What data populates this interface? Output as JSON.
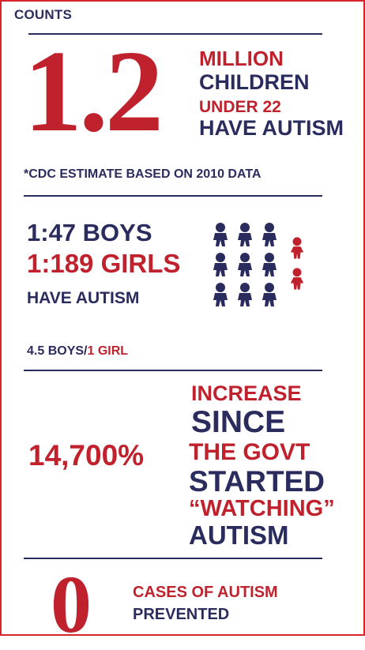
{
  "section_counts": {
    "heading": "COUNTS",
    "big_number": "1.2",
    "lines": [
      "MILLION",
      "CHILDREN",
      "UNDER 22",
      "HAVE AUTISM"
    ],
    "footnote": "*CDC ESTIMATE BASED ON 2010 DATA"
  },
  "section_ratio": {
    "boys": "1:47 BOYS",
    "girls": "1:189 GIRLS",
    "have": "HAVE AUTISM",
    "ratio_boys": "4.5 BOYS/",
    "ratio_girl": "1 GIRL"
  },
  "section_increase": {
    "percent": "14,700%",
    "lines": [
      "INCREASE",
      "SINCE",
      "THE GOVT",
      "STARTED",
      "“WATCHING”",
      "AUTISM"
    ]
  },
  "section_prevented": {
    "number": "0",
    "line1": "CASES OF AUTISM",
    "line2": "PREVENTED"
  },
  "colors": {
    "navy": "#2b2c5e",
    "red": "#c0222d",
    "border": "#d9262c"
  },
  "icons": [
    "boy-figure-icon",
    "girl-figure-icon"
  ]
}
